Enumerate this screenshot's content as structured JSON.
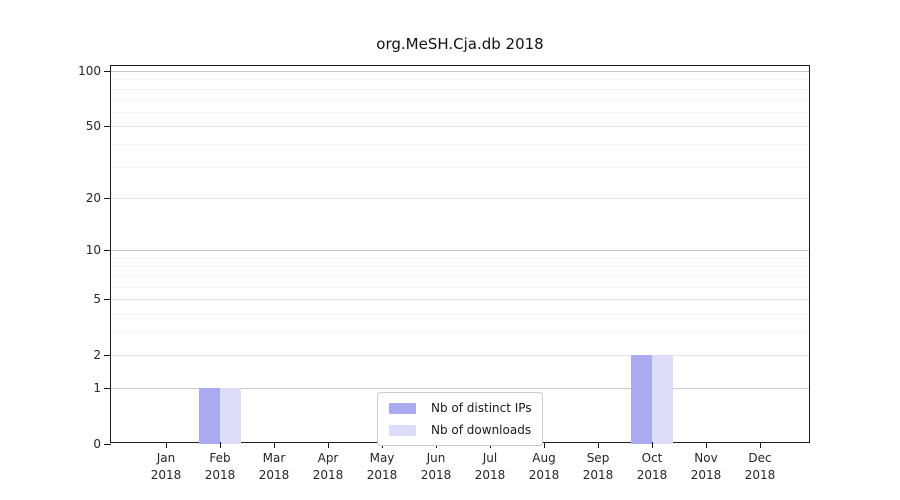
{
  "chart_data": {
    "type": "bar",
    "title": "org.MeSH.Cja.db 2018",
    "x_axis": {
      "months": [
        "Jan",
        "Feb",
        "Mar",
        "Apr",
        "May",
        "Jun",
        "Jul",
        "Aug",
        "Sep",
        "Oct",
        "Nov",
        "Dec"
      ],
      "year": "2018"
    },
    "y_axis": {
      "scale": "log1p",
      "ticks": [
        0,
        1,
        2,
        5,
        10,
        20,
        50,
        100
      ],
      "ylim": [
        0,
        100
      ]
    },
    "series": [
      {
        "name": "Nb of distinct IPs",
        "color": "#aaaaf0",
        "values": [
          0,
          1,
          0,
          0,
          0,
          0,
          0,
          0,
          0,
          2,
          0,
          0
        ]
      },
      {
        "name": "Nb of downloads",
        "color": "#dcdcfa",
        "values": [
          0,
          1,
          0,
          0,
          0,
          0,
          0,
          0,
          0,
          2,
          0,
          0
        ]
      }
    ],
    "legend": {
      "position": "lower center"
    },
    "grid": {
      "major_values": [
        1,
        10,
        100
      ],
      "mid_values": [
        2,
        5,
        20,
        50
      ],
      "minor_values": [
        3,
        4,
        6,
        7,
        8,
        9,
        30,
        40,
        60,
        70,
        80,
        90
      ],
      "major_color": "#c9c9cc",
      "mid_color": "#e6e6e8",
      "minor_color": "#f2f2f4"
    }
  },
  "colors": {
    "background": "#ffffff",
    "spine": "#1a1a1a",
    "text": "#262626"
  }
}
